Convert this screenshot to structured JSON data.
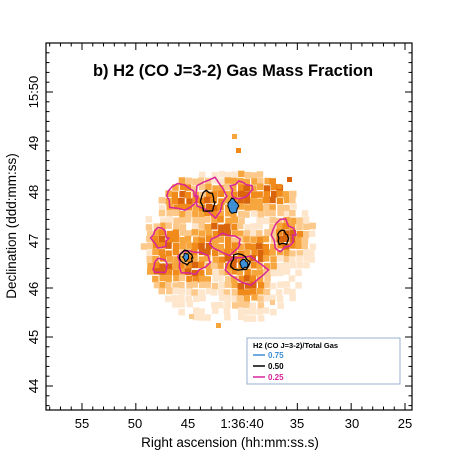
{
  "chart_data": {
    "type": "heatmap",
    "title": "b) H2 (CO J=3-2) Gas Mass Fraction",
    "xlabel": "Right ascension (hh:mm:ss.s)",
    "ylabel": "Declination (ddd:mm:ss)",
    "x_ticks": [
      "55",
      "50",
      "45",
      "1:36:40",
      "35",
      "30",
      "25"
    ],
    "y_ticks": [
      "15:50",
      "49",
      "48",
      "47",
      "46",
      "45",
      "44"
    ],
    "legend": {
      "title": "H2 (CO J=3-2)/Total Gas",
      "entries": [
        {
          "label": "0.75",
          "color": "#3d8fd6"
        },
        {
          "label": "0.50",
          "color": "#000000"
        },
        {
          "label": "0.25",
          "color": "#d9249a"
        }
      ]
    },
    "colormap": [
      "#fde6cc",
      "#fcc98a",
      "#f7a63e",
      "#f08a1a",
      "#d9640c"
    ],
    "contour_levels": [
      0.25,
      0.5,
      0.75
    ]
  }
}
